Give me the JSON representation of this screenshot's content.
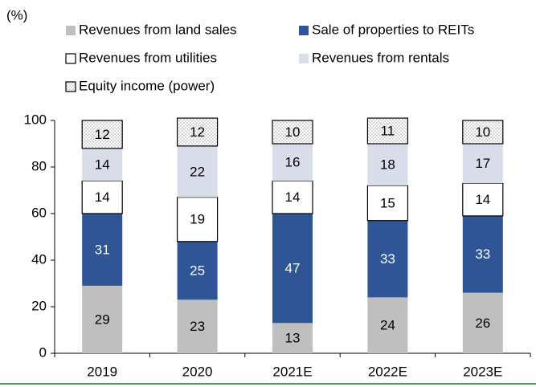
{
  "chart_data": {
    "type": "stacked_bar",
    "y_unit_label": "(%)",
    "categories": [
      "2019",
      "2020",
      "2021E",
      "2022E",
      "2023E"
    ],
    "series": [
      {
        "name": "Revenues from land sales",
        "color": "#bfbfbf",
        "label_color": "#000000",
        "values": [
          29,
          23,
          13,
          24,
          26
        ]
      },
      {
        "name": "Sale of properties to REITs",
        "color": "#2f5597",
        "label_color": "#ffffff",
        "values": [
          31,
          25,
          47,
          33,
          33
        ]
      },
      {
        "name": "Revenues from utilities",
        "color": "#ffffff",
        "edgecolor": "#000000",
        "label_color": "#000000",
        "values": [
          14,
          19,
          14,
          15,
          14
        ]
      },
      {
        "name": "Revenues from rentals",
        "color": "#d9dde9",
        "label_color": "#000000",
        "values": [
          14,
          22,
          16,
          18,
          17
        ]
      },
      {
        "name": "Equity income (power)",
        "color": "#ffffff",
        "pattern": "dots",
        "edgecolor": "#000000",
        "label_color": "#000000",
        "values": [
          12,
          12,
          10,
          11,
          10
        ]
      }
    ],
    "ylim": [
      0,
      100
    ],
    "yticks": [
      0,
      20,
      40,
      60,
      80,
      100
    ],
    "grid": false,
    "legend": "top"
  }
}
